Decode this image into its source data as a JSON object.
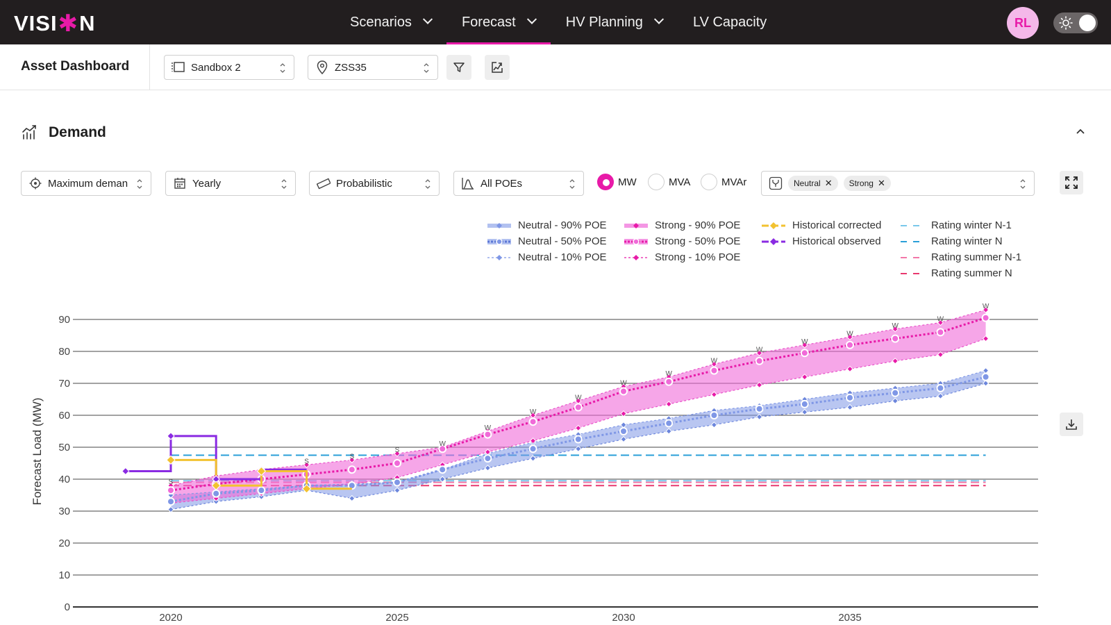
{
  "app": {
    "logo_left": "VISI",
    "logo_star": "✱",
    "logo_right": "N",
    "nav": [
      {
        "label": "Scenarios",
        "has_menu": true,
        "active": false
      },
      {
        "label": "Forecast",
        "has_menu": true,
        "active": true
      },
      {
        "label": "HV Planning",
        "has_menu": true,
        "active": false
      },
      {
        "label": "LV Capacity",
        "has_menu": false,
        "active": false
      }
    ],
    "user_initials": "RL",
    "accent_color": "#e81aa8"
  },
  "subheader": {
    "title": "Asset Dashboard",
    "workspace_select": "Sandbox 2",
    "asset_select": "ZSS35"
  },
  "section": {
    "title": "Demand",
    "metric_select": "Maximum deman",
    "period_select": "Yearly",
    "method_select": "Probabilistic",
    "poe_select": "All POEs",
    "units": [
      {
        "label": "MW",
        "checked": true
      },
      {
        "label": "MVA",
        "checked": false
      },
      {
        "label": "MVAr",
        "checked": false
      }
    ],
    "scenarios": [
      "Neutral",
      "Strong"
    ]
  },
  "legend": [
    "Neutral - 90% POE",
    "Neutral - 50% POE",
    "Neutral - 10% POE",
    "Strong - 90% POE",
    "Strong - 50% POE",
    "Strong - 10% POE",
    "Historical corrected",
    "Historical observed",
    "Rating winter N-1",
    "Rating winter N",
    "Rating summer N-1",
    "Rating summer N"
  ],
  "chart_data": {
    "type": "line",
    "ylabel": "Forecast Load (MW)",
    "xlabel": "",
    "ylim": [
      0,
      90
    ],
    "yticks": [
      0,
      10,
      20,
      30,
      40,
      50,
      60,
      70,
      80,
      90
    ],
    "xticks": [
      2020,
      2025,
      2030,
      2035
    ],
    "x": [
      2020,
      2021,
      2022,
      2023,
      2024,
      2025,
      2026,
      2027,
      2028,
      2029,
      2030,
      2031,
      2032,
      2033,
      2034,
      2035,
      2036,
      2037,
      2038
    ],
    "season_markers": [
      "S",
      "",
      "",
      "S",
      "S",
      "S",
      "W",
      "W",
      "W",
      "W",
      "W",
      "W",
      "W",
      "W",
      "W",
      "W",
      "W",
      "W",
      "W"
    ],
    "series": [
      {
        "name": "Neutral - 90% POE",
        "color": "#7f97e6",
        "values": [
          35,
          36,
          37,
          38,
          38.5,
          39,
          43,
          48,
          51.5,
          54,
          57,
          59,
          61.5,
          63,
          65,
          67,
          68.5,
          70,
          74
        ]
      },
      {
        "name": "Neutral - 50% POE",
        "color": "#7f97e6",
        "values": [
          33,
          35.5,
          36.5,
          38,
          38,
          39,
          43,
          46.5,
          49.5,
          52.5,
          55,
          57.5,
          60,
          62,
          63.5,
          65.5,
          67,
          68.5,
          72
        ]
      },
      {
        "name": "Neutral - 10% POE",
        "color": "#7f97e6",
        "values": [
          30.5,
          33,
          34.5,
          36.5,
          34,
          36.5,
          40,
          43.5,
          46.5,
          49.5,
          52.5,
          55,
          57,
          59.5,
          61,
          62.5,
          64.5,
          66,
          70
        ]
      },
      {
        "name": "Strong - 90% POE",
        "color": "#f06ad8",
        "values": [
          38,
          41,
          43,
          44.5,
          46,
          48,
          50,
          55,
          60,
          64.5,
          69,
          72,
          76,
          79.5,
          82,
          84.5,
          87,
          89,
          93
        ]
      },
      {
        "name": "Strong - 50% POE",
        "color": "#f06ad8",
        "values": [
          36.5,
          38.5,
          40,
          41.5,
          43,
          45,
          49.5,
          54,
          58,
          62.5,
          67.5,
          70.5,
          74,
          77,
          79.5,
          82,
          84,
          86,
          90.5
        ]
      },
      {
        "name": "Strong - 10% POE",
        "color": "#f06ad8",
        "values": [
          32.5,
          34,
          35.5,
          37,
          38.5,
          40.5,
          44.5,
          48.5,
          52,
          56,
          60.5,
          63.5,
          66.5,
          69.5,
          72,
          74.5,
          77,
          79,
          84
        ]
      },
      {
        "name": "Historical corrected",
        "color": "#f2c230",
        "x": [
          2020,
          2021,
          2022,
          2023
        ],
        "values": [
          46,
          38,
          42.5,
          37
        ]
      },
      {
        "name": "Historical observed",
        "color": "#8a2be2",
        "x": [
          2019,
          2020,
          2021,
          2022
        ],
        "values": [
          42.5,
          53.5,
          40,
          43
        ]
      },
      {
        "name": "Rating winter N-1",
        "color": "#79c7ea",
        "constant": 39.5
      },
      {
        "name": "Rating winter N",
        "color": "#2a9fd8",
        "constant": 47.5
      },
      {
        "name": "Rating summer N-1",
        "color": "#f277a8",
        "constant": 39
      },
      {
        "name": "Rating summer N",
        "color": "#e8386e",
        "constant": 38
      }
    ]
  }
}
